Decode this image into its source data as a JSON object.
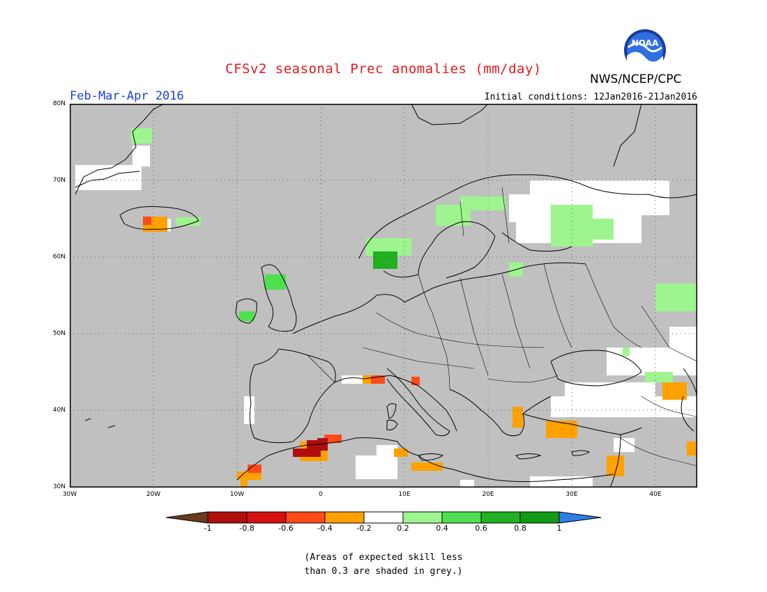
{
  "title": "CFSv2 seasonal Prec anomalies (mm/day)",
  "period": "Feb-Mar-Apr 2016",
  "initial_conditions": "Initial conditions: 12Jan2016-21Jan2016",
  "agency": "NWS/NCEP/CPC",
  "logo_text": "NOAA",
  "note_line1": "(Areas of expected skill less",
  "note_line2": "than 0.3 are shaded in grey.)",
  "lat_labels": [
    "80N",
    "70N",
    "60N",
    "50N",
    "40N",
    "30N"
  ],
  "lon_labels": [
    "30W",
    "20W",
    "10W",
    "0",
    "10E",
    "20E",
    "30E",
    "40E"
  ],
  "colorbar": {
    "ticks": [
      "-1",
      "-0.8",
      "-0.6",
      "-0.4",
      "-0.2",
      "0.2",
      "0.4",
      "0.6",
      "0.8",
      "1"
    ],
    "colors": [
      "#6b3a1f",
      "#b00d0d",
      "#d41010",
      "#ff4a1a",
      "#ffa100",
      "#ffffff",
      "#9ef58f",
      "#4fe04f",
      "#20b020",
      "#129a12",
      "#2f7de8"
    ]
  },
  "colors": {
    "ocean_grey": "#c0c0c0",
    "title_red": "#e8161b",
    "period_blue": "#1c3fd9"
  }
}
